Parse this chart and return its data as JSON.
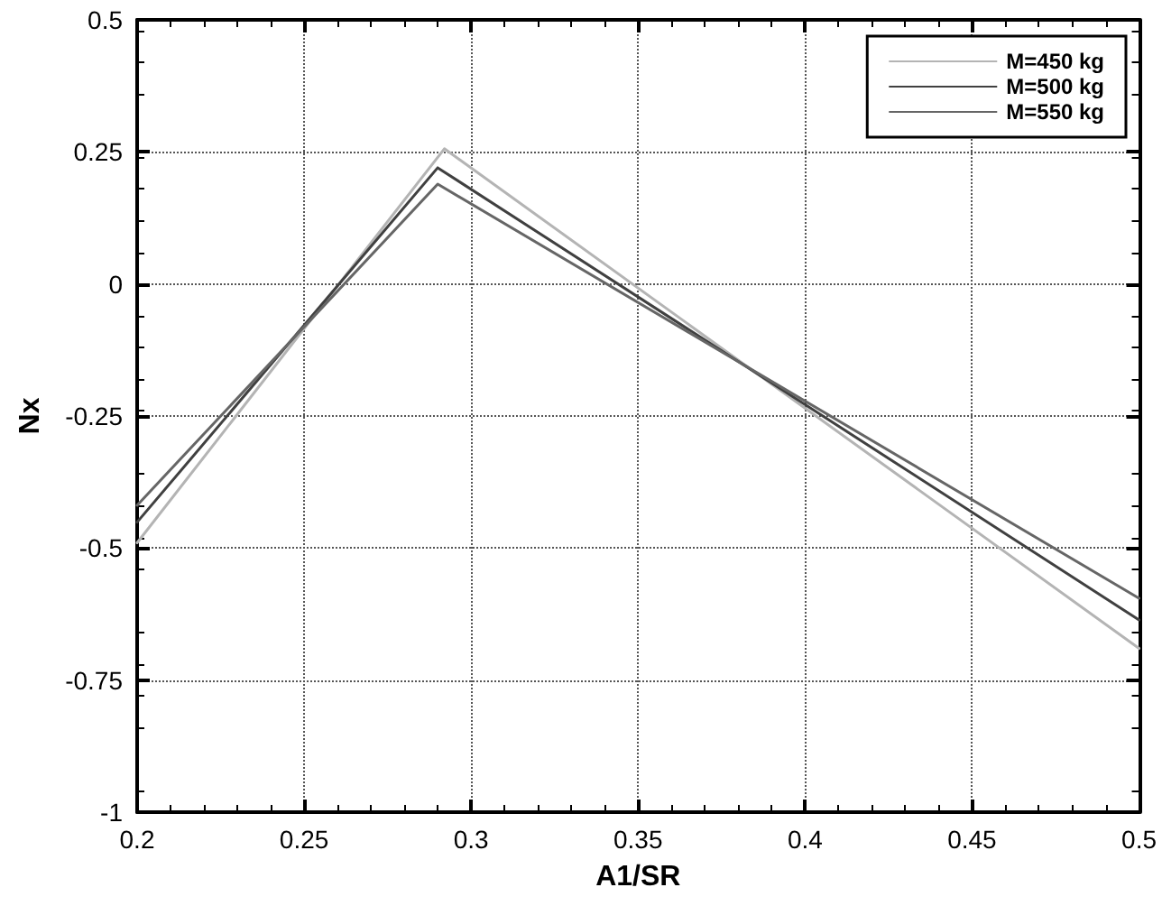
{
  "chart_data": {
    "type": "line",
    "xlabel": "A1/SR",
    "ylabel": "Nx",
    "xlim": [
      0.2,
      0.5
    ],
    "xticks": [
      0.2,
      0.25,
      0.3,
      0.35,
      0.4,
      0.45,
      0.5
    ],
    "ylim": [
      -1,
      0.5
    ],
    "yticks": [
      -1,
      -0.75,
      -0.5,
      -0.25,
      0,
      0.25,
      0.5
    ],
    "grid": true,
    "legend": "top right",
    "marker": "none",
    "line_style": "solid",
    "series": [
      {
        "name": "M=450 kg",
        "color": "#b4b4b4",
        "x": [
          0.2,
          0.292,
          0.5
        ],
        "values": [
          -0.49,
          0.256,
          -0.69
        ]
      },
      {
        "name": "M=500 kg",
        "color": "#404040",
        "x": [
          0.2,
          0.29,
          0.5
        ],
        "values": [
          -0.451,
          0.22,
          -0.636
        ]
      },
      {
        "name": "M=550 kg",
        "color": "#666666",
        "x": [
          0.2,
          0.29,
          0.5
        ],
        "values": [
          -0.419,
          0.189,
          -0.595
        ]
      }
    ]
  }
}
